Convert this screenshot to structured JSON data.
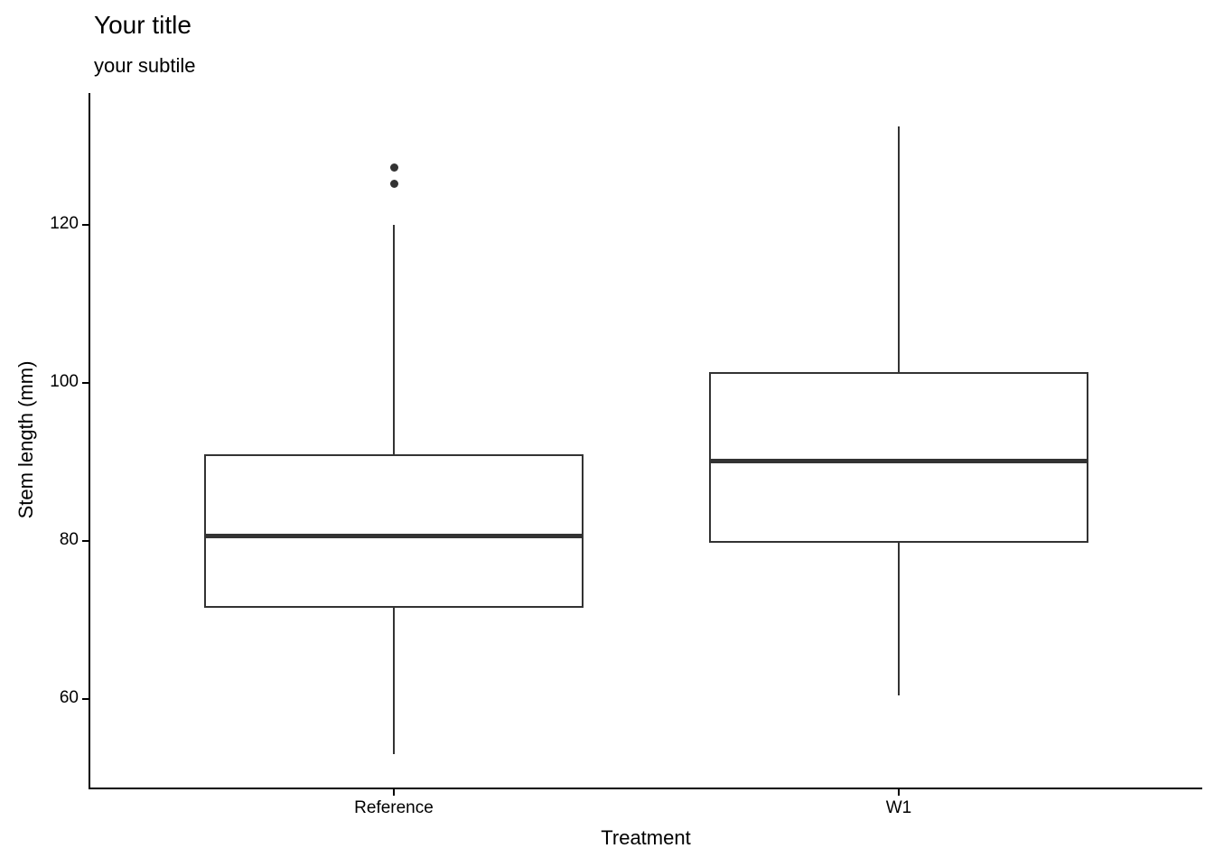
{
  "chart_data": {
    "type": "boxplot",
    "title": "Your title",
    "subtitle": "your subtile",
    "xlabel": "Treatment",
    "ylabel": "Stem length (mm)",
    "categories": [
      "Reference",
      "W1"
    ],
    "y_ticks": [
      60,
      80,
      100,
      120
    ],
    "ylim": [
      48.8,
      136.7
    ],
    "grid": false,
    "legend": "none",
    "theme": "classic",
    "series": [
      {
        "name": "Reference",
        "whisker_low": 53,
        "q1": 71.5,
        "median": 80.7,
        "q3": 91,
        "whisker_high": 120,
        "outliers": [
          125.3,
          127.3
        ]
      },
      {
        "name": "W1",
        "whisker_low": 60.5,
        "q1": 79.8,
        "median": 90.2,
        "q3": 101.4,
        "whisker_high": 132.5,
        "outliers": []
      }
    ],
    "colors": {
      "box_stroke": "#333333",
      "box_fill": "#ffffff",
      "axis_line": "#000000",
      "text": "#000000",
      "background": "#ffffff"
    }
  }
}
